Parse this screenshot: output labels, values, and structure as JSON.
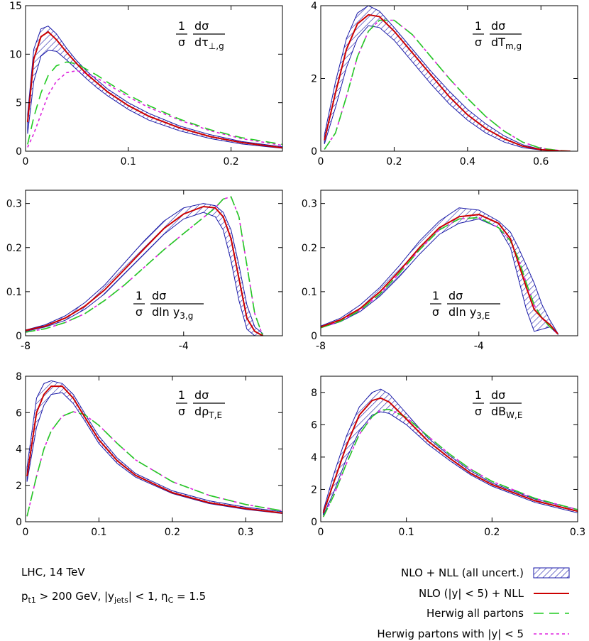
{
  "chart_data": [
    {
      "type": "line",
      "panel": "tau_perp",
      "ylabel_parts": {
        "num1": "1",
        "num2": "dσ",
        "den1": "σ",
        "den2": "dτ",
        "den_sub": "⊥,g"
      },
      "xlim": [
        0,
        0.25
      ],
      "ylim": [
        0,
        15
      ],
      "xticks": [
        "0",
        "0.1",
        "0.2"
      ],
      "xtick_values": [
        0,
        0.1,
        0.2
      ],
      "yticks": [
        "0",
        "5",
        "10",
        "15"
      ],
      "ytick_values": [
        0,
        5,
        10,
        15
      ],
      "x": [
        0.002,
        0.008,
        0.015,
        0.022,
        0.03,
        0.04,
        0.05,
        0.06,
        0.07,
        0.08,
        0.1,
        0.12,
        0.15,
        0.18,
        0.21,
        0.25
      ],
      "band_upper": [
        3.8,
        10.5,
        12.6,
        12.9,
        12.1,
        10.6,
        9.3,
        8.2,
        7.3,
        6.4,
        5.0,
        3.9,
        2.6,
        1.7,
        1.0,
        0.45
      ],
      "band_lower": [
        1.8,
        7.2,
        9.8,
        10.4,
        10.3,
        9.4,
        8.4,
        7.4,
        6.5,
        5.7,
        4.3,
        3.2,
        2.1,
        1.3,
        0.75,
        0.3
      ],
      "series": [
        {
          "name": "NLO (|y| < 5) + NLL",
          "values": [
            3.0,
            9.5,
            11.8,
            12.3,
            11.5,
            10.2,
            9.0,
            7.9,
            7.0,
            6.1,
            4.7,
            3.6,
            2.4,
            1.5,
            0.9,
            0.35
          ]
        },
        {
          "name": "Herwig all partons",
          "values": [
            0.7,
            3.5,
            6.0,
            7.8,
            8.8,
            9.2,
            9.0,
            8.4,
            7.8,
            7.1,
            5.8,
            4.7,
            3.3,
            2.2,
            1.4,
            0.7
          ]
        },
        {
          "name": "Herwig partons with |y| < 5",
          "values": [
            0.4,
            1.8,
            3.8,
            5.8,
            7.2,
            8.1,
            8.3,
            8.0,
            7.5,
            6.9,
            5.6,
            4.5,
            3.2,
            2.1,
            1.3,
            0.6
          ]
        }
      ]
    },
    {
      "type": "line",
      "panel": "T_m",
      "ylabel_parts": {
        "num1": "1",
        "num2": "dσ",
        "den1": "σ",
        "den2": "dT",
        "den_sub": "m,g"
      },
      "xlim": [
        0,
        0.7
      ],
      "ylim": [
        0,
        4
      ],
      "xticks": [
        "0",
        "0.2",
        "0.4",
        "0.6"
      ],
      "xtick_values": [
        0,
        0.2,
        0.4,
        0.6
      ],
      "yticks": [
        "0",
        "2",
        "4"
      ],
      "ytick_values": [
        0,
        2,
        4
      ],
      "x": [
        0.01,
        0.04,
        0.07,
        0.1,
        0.13,
        0.16,
        0.2,
        0.25,
        0.3,
        0.35,
        0.4,
        0.45,
        0.5,
        0.55,
        0.6,
        0.65,
        0.68
      ],
      "band_upper": [
        0.45,
        1.9,
        3.1,
        3.8,
        4.0,
        3.85,
        3.4,
        2.8,
        2.2,
        1.65,
        1.15,
        0.75,
        0.42,
        0.18,
        0.05,
        0.01,
        0.0
      ],
      "band_lower": [
        0.2,
        1.2,
        2.3,
        3.1,
        3.45,
        3.4,
        3.05,
        2.45,
        1.85,
        1.3,
        0.85,
        0.5,
        0.25,
        0.1,
        0.03,
        0.005,
        0.0
      ],
      "series": [
        {
          "name": "NLO (|y| < 5) + NLL",
          "values": [
            0.3,
            1.6,
            2.8,
            3.5,
            3.75,
            3.7,
            3.3,
            2.7,
            2.1,
            1.5,
            1.0,
            0.62,
            0.34,
            0.14,
            0.04,
            0.01,
            0.0
          ]
        },
        {
          "name": "Herwig all partons",
          "values": [
            0.05,
            0.5,
            1.5,
            2.6,
            3.3,
            3.6,
            3.6,
            3.2,
            2.6,
            2.0,
            1.45,
            0.95,
            0.55,
            0.25,
            0.08,
            0.02,
            0.0
          ]
        },
        {
          "name": "Herwig partons with |y| < 5",
          "values": [
            0.05,
            0.5,
            1.5,
            2.6,
            3.3,
            3.6,
            3.6,
            3.2,
            2.6,
            2.0,
            1.45,
            0.95,
            0.55,
            0.25,
            0.08,
            0.02,
            0.0
          ]
        }
      ]
    },
    {
      "type": "line",
      "panel": "ln_y3g",
      "ylabel_parts": {
        "num1": "1",
        "num2": "dσ",
        "den1": "σ",
        "den2": "dln y",
        "den_sub": "3,g"
      },
      "xlim": [
        -8,
        -1.5
      ],
      "ylim": [
        0,
        0.33
      ],
      "xticks": [
        "-8",
        "-4"
      ],
      "xtick_values": [
        -8,
        -4
      ],
      "yticks": [
        "0",
        "0.1",
        "0.2",
        "0.3"
      ],
      "ytick_values": [
        0,
        0.1,
        0.2,
        0.3
      ],
      "x": [
        -8.0,
        -7.5,
        -7.0,
        -6.5,
        -6.0,
        -5.5,
        -5.0,
        -4.5,
        -4.0,
        -3.5,
        -3.2,
        -3.0,
        -2.8,
        -2.6,
        -2.4,
        -2.2,
        -2.0
      ],
      "band_upper": [
        0.013,
        0.025,
        0.045,
        0.075,
        0.115,
        0.165,
        0.215,
        0.26,
        0.29,
        0.3,
        0.295,
        0.28,
        0.24,
        0.16,
        0.07,
        0.02,
        0.005
      ],
      "band_lower": [
        0.01,
        0.02,
        0.035,
        0.06,
        0.095,
        0.14,
        0.185,
        0.23,
        0.265,
        0.28,
        0.27,
        0.24,
        0.17,
        0.08,
        0.015,
        0.0,
        0.0
      ],
      "series": [
        {
          "name": "NLO (|y| < 5) + NLL",
          "values": [
            0.012,
            0.022,
            0.04,
            0.067,
            0.104,
            0.15,
            0.197,
            0.243,
            0.276,
            0.293,
            0.29,
            0.27,
            0.22,
            0.13,
            0.04,
            0.01,
            0.0
          ]
        },
        {
          "name": "Herwig all partons",
          "values": [
            0.008,
            0.016,
            0.03,
            0.05,
            0.08,
            0.115,
            0.155,
            0.195,
            0.232,
            0.268,
            0.29,
            0.31,
            0.315,
            0.27,
            0.16,
            0.05,
            0.0
          ]
        },
        {
          "name": "Herwig partons with |y| < 5",
          "values": [
            0.008,
            0.016,
            0.03,
            0.05,
            0.08,
            0.115,
            0.155,
            0.195,
            0.232,
            0.268,
            0.29,
            0.31,
            0.315,
            0.27,
            0.16,
            0.05,
            0.0
          ]
        }
      ]
    },
    {
      "type": "line",
      "panel": "ln_y3E",
      "ylabel_parts": {
        "num1": "1",
        "num2": "dσ",
        "den1": "σ",
        "den2": "dln y",
        "den_sub": "3,E"
      },
      "xlim": [
        -8,
        -1.5
      ],
      "ylim": [
        0,
        0.33
      ],
      "xticks": [
        "-8",
        "-4"
      ],
      "xtick_values": [
        -8,
        -4
      ],
      "yticks": [
        "0",
        "0.1",
        "0.2",
        "0.3"
      ],
      "ytick_values": [
        0,
        0.1,
        0.2,
        0.3
      ],
      "x": [
        -8.0,
        -7.5,
        -7.0,
        -6.5,
        -6.0,
        -5.5,
        -5.0,
        -4.5,
        -4.0,
        -3.5,
        -3.2,
        -3.0,
        -2.8,
        -2.6,
        -2.4,
        -2.2,
        -2.0
      ],
      "band_upper": [
        0.022,
        0.04,
        0.07,
        0.11,
        0.16,
        0.215,
        0.26,
        0.29,
        0.285,
        0.26,
        0.235,
        0.2,
        0.16,
        0.12,
        0.07,
        0.035,
        0.005
      ],
      "band_lower": [
        0.018,
        0.032,
        0.055,
        0.09,
        0.135,
        0.185,
        0.23,
        0.255,
        0.265,
        0.245,
        0.2,
        0.13,
        0.06,
        0.01,
        0.015,
        0.02,
        0.003
      ],
      "series": [
        {
          "name": "NLO (|y| < 5) + NLL",
          "values": [
            0.02,
            0.036,
            0.062,
            0.1,
            0.148,
            0.2,
            0.245,
            0.27,
            0.275,
            0.255,
            0.22,
            0.165,
            0.11,
            0.06,
            0.04,
            0.025,
            0.004
          ]
        },
        {
          "name": "Herwig all partons",
          "values": [
            0.018,
            0.033,
            0.058,
            0.095,
            0.143,
            0.195,
            0.24,
            0.265,
            0.268,
            0.245,
            0.215,
            0.175,
            0.12,
            0.07,
            0.04,
            0.02,
            0.004
          ]
        },
        {
          "name": "Herwig partons with |y| < 5",
          "values": [
            0.018,
            0.033,
            0.058,
            0.095,
            0.143,
            0.195,
            0.24,
            0.265,
            0.268,
            0.245,
            0.215,
            0.175,
            0.12,
            0.07,
            0.04,
            0.02,
            0.004
          ]
        }
      ]
    },
    {
      "type": "line",
      "panel": "rho_T",
      "ylabel_parts": {
        "num1": "1",
        "num2": "dσ",
        "den1": "σ",
        "den2": "dρ",
        "den_sub": "T,E"
      },
      "xlim": [
        0,
        0.35
      ],
      "ylim": [
        0,
        8
      ],
      "xticks": [
        "0",
        "0.1",
        "0.2",
        "0.3"
      ],
      "xtick_values": [
        0,
        0.1,
        0.2,
        0.3
      ],
      "yticks": [
        "0",
        "2",
        "4",
        "6",
        "8"
      ],
      "ytick_values": [
        0,
        2,
        4,
        6,
        8
      ],
      "x": [
        0.002,
        0.015,
        0.025,
        0.035,
        0.05,
        0.065,
        0.08,
        0.1,
        0.125,
        0.15,
        0.2,
        0.25,
        0.3,
        0.35
      ],
      "band_upper": [
        3.0,
        6.8,
        7.6,
        7.75,
        7.6,
        7.0,
        6.0,
        4.7,
        3.5,
        2.65,
        1.7,
        1.15,
        0.8,
        0.55
      ],
      "band_lower": [
        2.2,
        5.2,
        6.4,
        7.0,
        7.1,
        6.5,
        5.6,
        4.3,
        3.2,
        2.45,
        1.55,
        1.0,
        0.68,
        0.45
      ],
      "series": [
        {
          "name": "NLO (|y| < 5) + NLL",
          "values": [
            2.5,
            6.0,
            7.0,
            7.45,
            7.45,
            6.8,
            5.8,
            4.5,
            3.35,
            2.55,
            1.6,
            1.05,
            0.72,
            0.48
          ]
        },
        {
          "name": "Herwig all partons",
          "values": [
            0.3,
            2.5,
            4.0,
            5.0,
            5.8,
            6.05,
            5.9,
            5.3,
            4.3,
            3.4,
            2.2,
            1.45,
            0.95,
            0.6
          ]
        },
        {
          "name": "Herwig partons with |y| < 5",
          "values": [
            0.3,
            2.5,
            4.0,
            5.0,
            5.8,
            6.05,
            5.9,
            5.3,
            4.3,
            3.4,
            2.2,
            1.45,
            0.95,
            0.6
          ]
        }
      ]
    },
    {
      "type": "line",
      "panel": "B_W",
      "ylabel_parts": {
        "num1": "1",
        "num2": "dσ",
        "den1": "σ",
        "den2": "dB",
        "den_sub": "W,E"
      },
      "xlim": [
        0,
        0.3
      ],
      "ylim": [
        0,
        9
      ],
      "xticks": [
        "0",
        "0.1",
        "0.2",
        "0.3"
      ],
      "xtick_values": [
        0,
        0.1,
        0.2,
        0.3
      ],
      "yticks": [
        "0",
        "2",
        "4",
        "6",
        "8"
      ],
      "ytick_values": [
        0,
        2,
        4,
        6,
        8
      ],
      "x": [
        0.003,
        0.015,
        0.03,
        0.045,
        0.06,
        0.07,
        0.08,
        0.1,
        0.125,
        0.15,
        0.175,
        0.2,
        0.25,
        0.3
      ],
      "band_upper": [
        0.7,
        2.9,
        5.3,
        7.1,
        8.0,
        8.2,
        7.9,
        6.7,
        5.2,
        4.1,
        3.15,
        2.4,
        1.4,
        0.75
      ],
      "band_lower": [
        0.4,
        1.8,
        3.9,
        5.6,
        6.6,
        6.8,
        6.7,
        6.0,
        4.8,
        3.8,
        2.9,
        2.2,
        1.2,
        0.55
      ],
      "series": [
        {
          "name": "NLO (|y| < 5) + NLL",
          "values": [
            0.55,
            2.4,
            4.7,
            6.6,
            7.5,
            7.65,
            7.4,
            6.35,
            5.0,
            3.95,
            3.0,
            2.3,
            1.3,
            0.65
          ]
        },
        {
          "name": "Herwig all partons",
          "values": [
            0.3,
            1.6,
            3.6,
            5.4,
            6.5,
            6.9,
            6.95,
            6.45,
            5.3,
            4.2,
            3.25,
            2.5,
            1.45,
            0.75
          ]
        },
        {
          "name": "Herwig partons with |y| < 5",
          "values": [
            0.3,
            1.6,
            3.6,
            5.4,
            6.5,
            6.9,
            6.95,
            6.45,
            5.3,
            4.2,
            3.25,
            2.5,
            1.45,
            0.75
          ]
        }
      ]
    }
  ],
  "info": {
    "line1": "LHC, 14 TeV",
    "line2": {
      "p": "p",
      "p_sub": "t1",
      "mid": " > 200 GeV, |y",
      "y_sub": "jets",
      "after": "| < 1, η",
      "eta_sub": "C",
      "tail": " = 1.5"
    }
  },
  "legend": [
    {
      "label": "NLO + NLL (all uncert.)",
      "style": "band",
      "color": "#1a1aa8"
    },
    {
      "label": "NLO (|y| < 5) + NLL",
      "style": "solid",
      "color": "#cc0000"
    },
    {
      "label": "Herwig all partons",
      "style": "long-dash",
      "color": "#22cc22"
    },
    {
      "label": "Herwig partons with |y| < 5",
      "style": "short-dash",
      "color": "#dd22dd"
    }
  ]
}
